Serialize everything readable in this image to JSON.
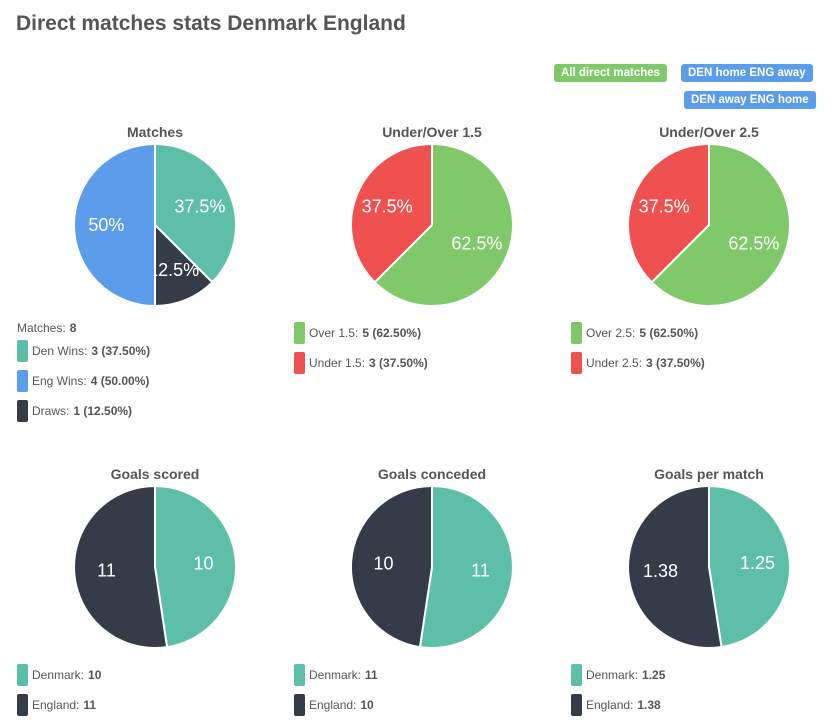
{
  "page": {
    "title": "Direct matches stats Denmark England"
  },
  "filters": [
    {
      "label": "All direct matches",
      "color": "#7fc96a"
    },
    {
      "label": "DEN home ENG away",
      "color": "#5b9ceb"
    },
    {
      "label": "DEN away ENG home",
      "color": "#5b9ceb"
    }
  ],
  "colors": {
    "teal": "#5ebfa9",
    "blue": "#5b9ceb",
    "dark": "#343c47",
    "green": "#7fc96a",
    "red": "#ef5050"
  },
  "chart_data": [
    {
      "type": "pie",
      "title": "Matches",
      "slices": [
        {
          "name": "Den Wins",
          "value": 3,
          "label": "37.5%",
          "color": "#5ebfa9"
        },
        {
          "name": "Draws",
          "value": 1,
          "label": "12.5%",
          "color": "#343c47"
        },
        {
          "name": "Eng Wins",
          "value": 4,
          "label": "50%",
          "color": "#5b9ceb"
        }
      ],
      "legend_header": {
        "label": "Matches:",
        "value": "8"
      },
      "legend": [
        {
          "label": "Den Wins:",
          "value": "3 (37.50%)",
          "color": "#5ebfa9"
        },
        {
          "label": "Eng Wins:",
          "value": "4 (50.00%)",
          "color": "#5b9ceb"
        },
        {
          "label": "Draws:",
          "value": "1 (12.50%)",
          "color": "#343c47"
        }
      ]
    },
    {
      "type": "pie",
      "title": "Under/Over 1.5",
      "slices": [
        {
          "name": "Over 1.5",
          "value": 5,
          "label": "62.5%",
          "color": "#7fc96a"
        },
        {
          "name": "Under 1.5",
          "value": 3,
          "label": "37.5%",
          "color": "#ef5050"
        }
      ],
      "legend": [
        {
          "label": "Over 1.5:",
          "value": "5 (62.50%)",
          "color": "#7fc96a"
        },
        {
          "label": "Under 1.5:",
          "value": "3 (37.50%)",
          "color": "#ef5050"
        }
      ]
    },
    {
      "type": "pie",
      "title": "Under/Over 2.5",
      "slices": [
        {
          "name": "Over 2.5",
          "value": 5,
          "label": "62.5%",
          "color": "#7fc96a"
        },
        {
          "name": "Under 2.5",
          "value": 3,
          "label": "37.5%",
          "color": "#ef5050"
        }
      ],
      "legend": [
        {
          "label": "Over 2.5:",
          "value": "5 (62.50%)",
          "color": "#7fc96a"
        },
        {
          "label": "Under 2.5:",
          "value": "3 (37.50%)",
          "color": "#ef5050"
        }
      ]
    },
    {
      "type": "pie",
      "title": "Goals scored",
      "slices": [
        {
          "name": "Denmark",
          "value": 10,
          "label": "10",
          "color": "#5ebfa9"
        },
        {
          "name": "England",
          "value": 11,
          "label": "11",
          "color": "#343c47"
        }
      ],
      "legend": [
        {
          "label": "Denmark:",
          "value": "10",
          "color": "#5ebfa9"
        },
        {
          "label": "England:",
          "value": "11",
          "color": "#343c47"
        }
      ]
    },
    {
      "type": "pie",
      "title": "Goals conceded",
      "slices": [
        {
          "name": "Denmark",
          "value": 11,
          "label": "11",
          "color": "#5ebfa9"
        },
        {
          "name": "England",
          "value": 10,
          "label": "10",
          "color": "#343c47"
        }
      ],
      "legend": [
        {
          "label": "Denmark:",
          "value": "11",
          "color": "#5ebfa9"
        },
        {
          "label": "England:",
          "value": "10",
          "color": "#343c47"
        }
      ]
    },
    {
      "type": "pie",
      "title": "Goals per match",
      "slices": [
        {
          "name": "Denmark",
          "value": 1.25,
          "label": "1.25",
          "color": "#5ebfa9"
        },
        {
          "name": "England",
          "value": 1.38,
          "label": "1.38",
          "color": "#343c47"
        }
      ],
      "legend": [
        {
          "label": "Denmark:",
          "value": "1.25",
          "color": "#5ebfa9"
        },
        {
          "label": "England:",
          "value": "1.38",
          "color": "#343c47"
        }
      ]
    }
  ]
}
